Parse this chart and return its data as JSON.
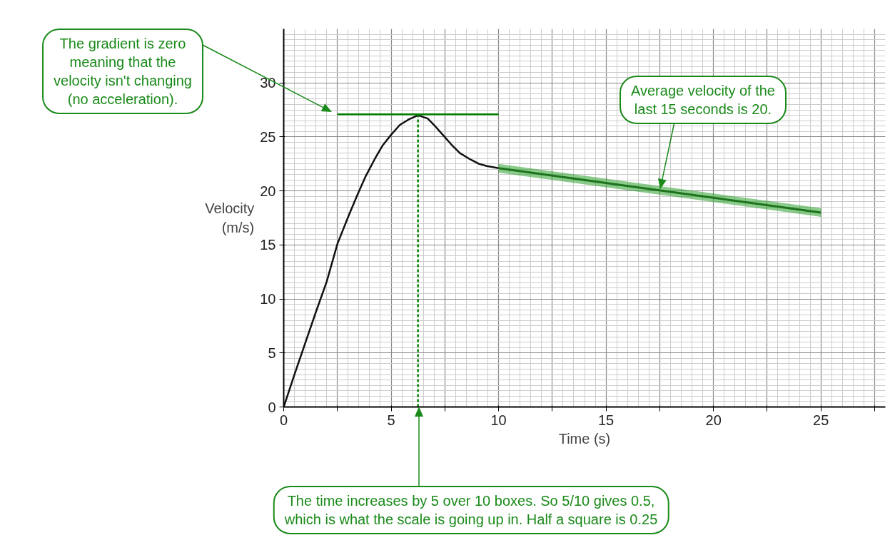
{
  "chart_data": {
    "type": "line",
    "xlabel": "Time (s)",
    "ylabel": "Velocity\n(m/s)",
    "xlim": [
      0,
      28
    ],
    "ylim": [
      0,
      35
    ],
    "xticks": [
      0,
      {
        "value": 2.5,
        "label": null
      },
      5,
      {
        "value": 7.5,
        "label": null
      },
      10,
      {
        "value": 12.5,
        "label": null
      },
      15,
      {
        "value": 17.5,
        "label": null
      },
      20,
      {
        "value": 22.5,
        "label": null
      },
      25,
      {
        "value": 27.5,
        "label": null
      }
    ],
    "yticks": [
      0,
      5,
      10,
      15,
      20,
      25,
      30
    ],
    "grid": true,
    "marker": "none",
    "line_style": "solid",
    "series": [
      {
        "color": "#111111",
        "x": [
          0,
          0.5,
          1.0,
          1.5,
          2.0,
          2.5,
          3.0,
          3.4,
          3.8,
          4.25,
          4.6,
          5.0,
          5.4,
          5.8,
          6.25,
          6.7,
          7.0,
          7.4,
          7.8,
          8.2,
          8.7,
          9.1,
          9.45,
          10
        ],
        "values": [
          0,
          3.0,
          5.9,
          8.8,
          11.6,
          15.1,
          17.6,
          19.5,
          21.3,
          23.0,
          24.2,
          25.2,
          26.1,
          26.6,
          27.0,
          26.7,
          26.1,
          25.2,
          24.3,
          23.5,
          22.9,
          22.5,
          22.3,
          22.1
        ]
      },
      {
        "color": "#008000",
        "x": [
          2.5,
          10
        ],
        "values": [
          27.1,
          27.1
        ]
      },
      {
        "color": "#008000",
        "x": [
          6.25,
          6.25
        ],
        "values": [
          0,
          27.0
        ],
        "line_style": "dashed"
      },
      {
        "color": "#0b3d0b",
        "x": [
          10,
          25
        ],
        "values": [
          22.1,
          18.0
        ],
        "lower": [
          21.7,
          17.6
        ],
        "upper": [
          22.5,
          18.4
        ]
      }
    ],
    "annotations": [
      "The gradient is zero\nmeaning that the\nvelocity isn't changing\n(no acceleration).",
      "Average velocity of the\nlast 15 seconds is 20.",
      "The time increases by 5 over 10 boxes. So 5/10 gives 0.5,\nwhich is what the scale is going up in. Half a square is 0.25"
    ]
  }
}
